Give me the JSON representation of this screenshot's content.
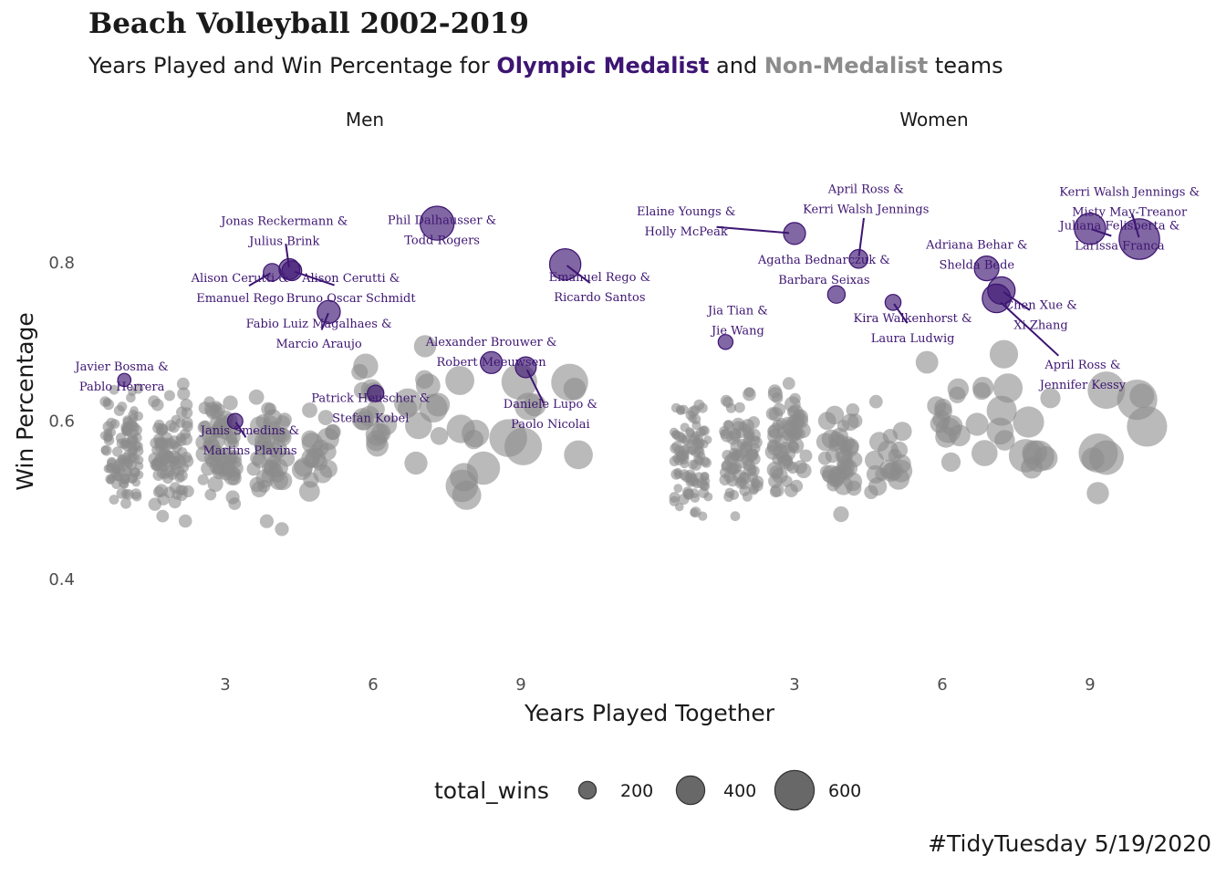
{
  "title": "Beach Volleyball 2002-2019",
  "subtitle": {
    "prefix": "Years Played and Win Percentage for ",
    "medalist": "Olympic Medalist",
    "middle": " and ",
    "nonmedalist": "Non-Medalist",
    "suffix": " teams"
  },
  "caption": "#TidyTuesday 5/19/2020",
  "colors": {
    "medalist": "#3d1572",
    "nonmedalist": "#8c8c8c",
    "text": "#1a1a1a",
    "tick": "#4d4d4d"
  },
  "chart_data": {
    "type": "scatter",
    "xlabel": "Years Played Together",
    "ylabel": "Win Percentage",
    "facets": [
      "Men",
      "Women"
    ],
    "x_ticks": [
      3,
      6,
      9
    ],
    "y_ticks": [
      0.4,
      0.6,
      0.8
    ],
    "xlim": [
      0,
      12
    ],
    "ylim": [
      0.3,
      0.9
    ],
    "legend": {
      "title": "total_wins",
      "position": "bottom",
      "sizes": [
        200,
        400,
        600
      ]
    },
    "medalists": [
      {
        "facet": "Men",
        "label": [
          "Jonas Reckermann &",
          "Julius Brink"
        ],
        "x": 4.3,
        "y": 0.792,
        "wins": 260,
        "lx": 4.2,
        "ly": 0.848
      },
      {
        "facet": "Men",
        "label": [
          "Phil Dalhausser &",
          "Todd Rogers"
        ],
        "x": 7.3,
        "y": 0.85,
        "wins": 500,
        "lx": 7.4,
        "ly": 0.849
      },
      {
        "facet": "Men",
        "label": [
          "Alison Cerutti &",
          "Emanuel Rego"
        ],
        "x": 3.95,
        "y": 0.788,
        "wins": 200,
        "lx": 3.3,
        "ly": 0.776
      },
      {
        "facet": "Men",
        "label": [
          "Alison Cerutti &",
          "Bruno Oscar Schmidt"
        ],
        "x": 4.35,
        "y": 0.79,
        "wins": 240,
        "lx": 5.55,
        "ly": 0.776
      },
      {
        "facet": "Men",
        "label": [
          "Emanuel Rego &",
          "Ricardo Santos"
        ],
        "x": 9.9,
        "y": 0.798,
        "wins": 450,
        "lx": 10.6,
        "ly": 0.777
      },
      {
        "facet": "Men",
        "label": [
          "Fabio Luiz Magalhaes &",
          "Marcio Araujo"
        ],
        "x": 5.1,
        "y": 0.738,
        "wins": 300,
        "lx": 4.9,
        "ly": 0.718
      },
      {
        "facet": "Men",
        "label": [
          "Alexander Brouwer &",
          "Robert Meeuwsen"
        ],
        "x": 8.4,
        "y": 0.674,
        "wins": 280,
        "lx": 8.4,
        "ly": 0.695
      },
      {
        "facet": "Men",
        "label": [
          "Javier Bosma &",
          "Pablo Herrera"
        ],
        "x": 0.95,
        "y": 0.652,
        "wins": 120,
        "lx": 0.9,
        "ly": 0.664
      },
      {
        "facet": "Men",
        "label": [
          "Daniele Lupo &",
          "Paolo Nicolai"
        ],
        "x": 9.1,
        "y": 0.668,
        "wins": 260,
        "lx": 9.6,
        "ly": 0.617
      },
      {
        "facet": "Men",
        "label": [
          "Patrick Heuscher &",
          "Stefan Kobel"
        ],
        "x": 6.05,
        "y": 0.635,
        "wins": 180,
        "lx": 5.95,
        "ly": 0.624
      },
      {
        "facet": "Men",
        "label": [
          "Janis Smedins &",
          "Martins Plavins"
        ],
        "x": 3.2,
        "y": 0.6,
        "wins": 160,
        "lx": 3.5,
        "ly": 0.583
      },
      {
        "facet": "Women",
        "label": [
          "Kerri Walsh Jennings &",
          "Misty May-Treanor"
        ],
        "x": 10,
        "y": 0.83,
        "wins": 620,
        "lx": 9.8,
        "ly": 0.885
      },
      {
        "facet": "Women",
        "label": [
          "April Ross &",
          "Kerri Walsh Jennings"
        ],
        "x": 4.3,
        "y": 0.805,
        "wins": 220,
        "lx": 4.45,
        "ly": 0.888
      },
      {
        "facet": "Women",
        "label": [
          "Elaine Youngs &",
          "Holly McPeak"
        ],
        "x": 3.0,
        "y": 0.837,
        "wins": 280,
        "lx": 0.8,
        "ly": 0.86
      },
      {
        "facet": "Women",
        "label": [
          "Juliana Felisberta &",
          "Larissa Franca"
        ],
        "x": 9.0,
        "y": 0.843,
        "wins": 450,
        "lx": 9.6,
        "ly": 0.842
      },
      {
        "facet": "Women",
        "label": [
          "Adriana Behar &",
          "Shelda Bede"
        ],
        "x": 6.9,
        "y": 0.793,
        "wins": 330,
        "lx": 6.7,
        "ly": 0.818
      },
      {
        "facet": "Women",
        "label": [
          "Agatha Bednarczuk &",
          "Barbara Seixas"
        ],
        "x": 3.85,
        "y": 0.76,
        "wins": 200,
        "lx": 3.6,
        "ly": 0.799
      },
      {
        "facet": "Women",
        "label": [
          "Kira Walkenhorst &",
          "Laura Ludwig"
        ],
        "x": 5.0,
        "y": 0.75,
        "wins": 170,
        "lx": 5.4,
        "ly": 0.725
      },
      {
        "facet": "Women",
        "label": [
          "Chen Xue &",
          "Xi Zhang"
        ],
        "x": 7.2,
        "y": 0.765,
        "wins": 380,
        "lx": 8.0,
        "ly": 0.742
      },
      {
        "facet": "Women",
        "label": [
          "April Ross &",
          "Jennifer Kessy"
        ],
        "x": 7.1,
        "y": 0.755,
        "wins": 400,
        "lx": 8.85,
        "ly": 0.666
      },
      {
        "facet": "Women",
        "label": [
          "Jia Tian &",
          "Jie Wang"
        ],
        "x": 1.6,
        "y": 0.7,
        "wins": 150,
        "lx": 1.85,
        "ly": 0.735
      }
    ]
  }
}
